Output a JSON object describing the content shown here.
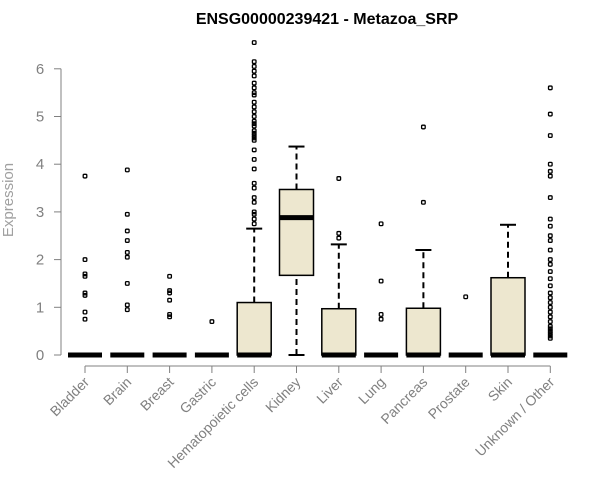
{
  "chart_data": {
    "type": "box",
    "title": "ENSG00000239421 - Metazoa_SRP",
    "xlabel": "",
    "ylabel": "Expression",
    "ylim": [
      0,
      6.6
    ],
    "yticks": [
      0,
      1,
      2,
      3,
      4,
      5,
      6
    ],
    "box_color": "#ede7cf",
    "categories": [
      "Bladder",
      "Brain",
      "Breast",
      "Gastric",
      "Hematopoietic cells",
      "Kidney",
      "Liver",
      "Lung",
      "Pancreas",
      "Prostate",
      "Skin",
      "Unknown / Other"
    ],
    "boxes": [
      {
        "min": 0,
        "q1": 0,
        "median": 0,
        "q3": 0,
        "max": 0,
        "outliers": [
          0.75,
          0.9,
          1.25,
          1.3,
          1.65,
          1.7,
          2.0,
          3.75
        ]
      },
      {
        "min": 0,
        "q1": 0,
        "median": 0,
        "q3": 0,
        "max": 0,
        "outliers": [
          0.95,
          1.05,
          1.5,
          2.05,
          2.15,
          2.4,
          2.6,
          2.95,
          3.88
        ]
      },
      {
        "min": 0,
        "q1": 0,
        "median": 0,
        "q3": 0,
        "max": 0,
        "outliers": [
          0.8,
          0.85,
          1.15,
          1.3,
          1.35,
          1.65
        ]
      },
      {
        "min": 0,
        "q1": 0,
        "median": 0,
        "q3": 0,
        "max": 0,
        "outliers": [
          0.7
        ]
      },
      {
        "min": 0,
        "q1": 0,
        "median": 0,
        "q3": 1.1,
        "max": 2.65,
        "outliers": [
          2.75,
          2.85,
          2.95,
          3.0,
          3.2,
          3.3,
          3.5,
          3.6,
          3.9,
          4.1,
          4.3,
          4.5,
          4.55,
          4.6,
          4.65,
          4.7,
          4.8,
          4.85,
          4.9,
          5.0,
          5.1,
          5.2,
          5.3,
          5.45,
          5.5,
          5.6,
          5.7,
          5.85,
          5.95,
          6.05,
          6.15,
          6.55
        ]
      },
      {
        "min": 0,
        "q1": 1.67,
        "median": 2.88,
        "q3": 3.47,
        "max": 4.37,
        "outliers": []
      },
      {
        "min": 0,
        "q1": 0,
        "median": 0,
        "q3": 0.97,
        "max": 2.32,
        "outliers": [
          2.45,
          2.55,
          3.7
        ]
      },
      {
        "min": 0,
        "q1": 0,
        "median": 0,
        "q3": 0,
        "max": 0,
        "outliers": [
          0.75,
          0.85,
          1.55,
          2.75
        ]
      },
      {
        "min": 0,
        "q1": 0,
        "median": 0,
        "q3": 0.98,
        "max": 2.2,
        "outliers": [
          3.2,
          4.78
        ]
      },
      {
        "min": 0,
        "q1": 0,
        "median": 0,
        "q3": 0,
        "max": 0,
        "outliers": [
          1.22
        ]
      },
      {
        "min": 0,
        "q1": 0,
        "median": 0,
        "q3": 1.62,
        "max": 2.73,
        "outliers": []
      },
      {
        "min": 0,
        "q1": 0,
        "median": 0,
        "q3": 0,
        "max": 0,
        "outliers": [
          0.35,
          0.4,
          0.45,
          0.5,
          0.55,
          0.6,
          0.7,
          0.8,
          0.9,
          1.0,
          1.1,
          1.2,
          1.3,
          1.45,
          1.6,
          1.75,
          1.9,
          2.0,
          2.2,
          2.4,
          2.5,
          2.7,
          2.85,
          3.3,
          3.75,
          3.85,
          4.0,
          4.6,
          5.05,
          5.6
        ]
      }
    ]
  }
}
